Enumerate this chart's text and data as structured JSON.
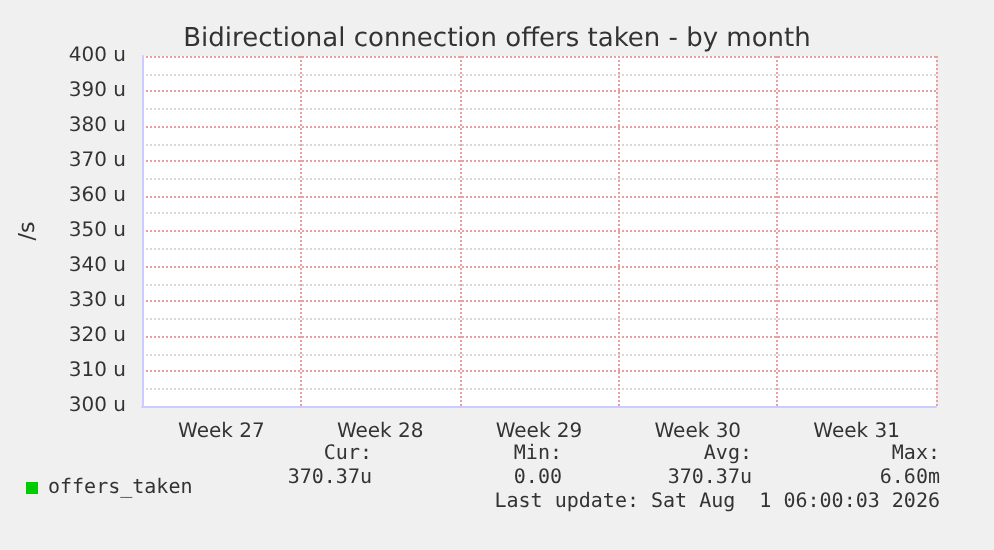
{
  "chart_data": {
    "type": "line",
    "title": "Bidirectional connection offers taken - by month",
    "ylabel": "/s",
    "categories": [
      "Week 27",
      "Week 28",
      "Week 29",
      "Week 30",
      "Week 31"
    ],
    "series": [
      {
        "name": "offers_taken",
        "color": "#00cc00",
        "values": [
          null,
          null,
          null,
          null,
          null
        ]
      }
    ],
    "ylim": [
      300,
      400
    ],
    "yticks": [
      {
        "value": 300,
        "label": "300 u"
      },
      {
        "value": 310,
        "label": "310 u"
      },
      {
        "value": 320,
        "label": "320 u"
      },
      {
        "value": 330,
        "label": "330 u"
      },
      {
        "value": 340,
        "label": "340 u"
      },
      {
        "value": 350,
        "label": "350 u"
      },
      {
        "value": 360,
        "label": "360 u"
      },
      {
        "value": 370,
        "label": "370 u"
      },
      {
        "value": 380,
        "label": "380 u"
      },
      {
        "value": 390,
        "label": "390 u"
      },
      {
        "value": 400,
        "label": "400 u"
      }
    ],
    "grid": true,
    "legend": "bottom left",
    "annotations": [
      "Cur:",
      "Min:",
      "Avg:",
      "Max:",
      "370.37u",
      "0.00",
      "370.37u",
      "6.60m",
      "Last update: Sat Aug  1 06:00:03 2026"
    ]
  }
}
